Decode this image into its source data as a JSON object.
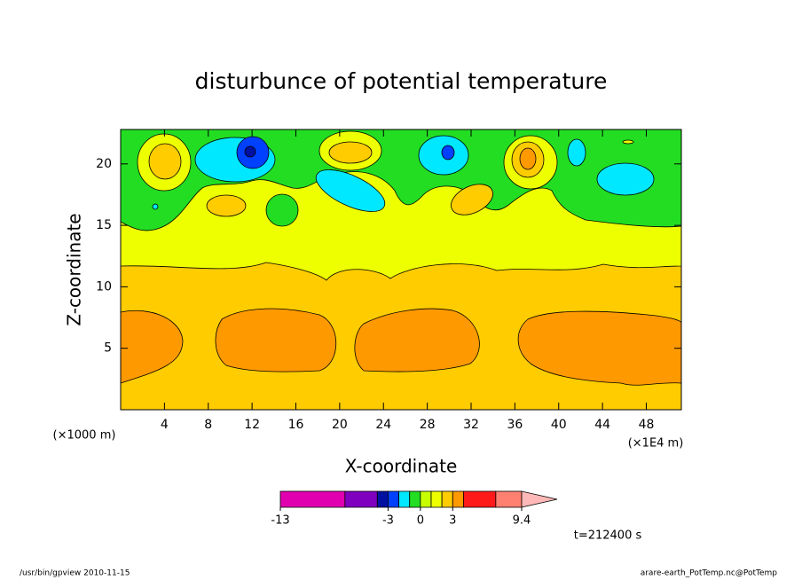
{
  "chart_data": {
    "type": "contour",
    "title": "disturbunce of potential temperature",
    "xlabel": "X-coordinate",
    "ylabel": "Z-coordinate",
    "x_unit_label": "(×1000 m)",
    "x_unit_label_right": "(×1E4 m)",
    "xlim": [
      0,
      51.2
    ],
    "xticks": [
      4,
      8,
      12,
      16,
      20,
      24,
      28,
      32,
      36,
      40,
      44,
      48
    ],
    "ylim": [
      0,
      22.8
    ],
    "yticks": [
      5,
      10,
      15,
      20
    ],
    "colorbar": {
      "levels": [
        -13,
        -7,
        -4,
        -3,
        -2,
        -1,
        0,
        1,
        2,
        3,
        4,
        7,
        9.4
      ],
      "colors": [
        "#e000b0",
        "#8000c0",
        "#0010a0",
        "#0040ff",
        "#00e8ff",
        "#22dd22",
        "#c8ff00",
        "#eeff00",
        "#ffcc00",
        "#ff9900",
        "#ff1a1a",
        "#ff8070"
      ],
      "extend_color": "#ffb8b8",
      "ticks": [
        -13,
        -3,
        0,
        3,
        9.4
      ]
    },
    "annotation": "t=212400 s",
    "footer_left": "/usr/bin/gpview  2010-11-15",
    "footer_right": "arare-earth_PotTemp.nc@PotTemp"
  }
}
